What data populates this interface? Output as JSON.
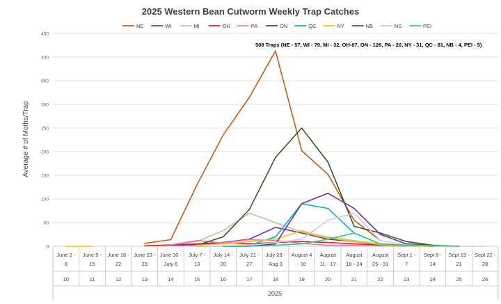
{
  "chart_data": {
    "type": "line",
    "title": "2025 Western Bean Cutworm Weekly Trap Catches",
    "ylabel": "Average # of Moths/Trap",
    "xlabel": "2025",
    "annotation": "508 Traps (NE - 57, WI - 79, MI - 32, OH-67, ON - 126, PA - 20, NY - 31, QC - 81, NB - 4, PEI - 5)",
    "ylim": [
      0,
      450
    ],
    "yticks": [
      0,
      50,
      100,
      150,
      200,
      250,
      300,
      350,
      400,
      450
    ],
    "grid": true,
    "legend_position": "top",
    "categories": [
      [
        "June 2 -",
        "8"
      ],
      [
        "June 9 -",
        "15"
      ],
      [
        "June 16 -",
        "22"
      ],
      [
        "June 23 -",
        "29"
      ],
      [
        "June 30 -",
        "July 6"
      ],
      [
        "July 7 -",
        "13"
      ],
      [
        "July 14 -",
        "20"
      ],
      [
        "July 21 -",
        "27"
      ],
      [
        "July 28 -",
        "Aug 3"
      ],
      [
        "August 4",
        "- 10"
      ],
      [
        "August",
        "11 - 17"
      ],
      [
        "August",
        "18 - 24"
      ],
      [
        "August",
        "25 - 31"
      ],
      [
        "Sept 1 -",
        "7"
      ],
      [
        "Sept 8 -",
        "14"
      ],
      [
        "Sept 15 -",
        "21"
      ],
      [
        "Sept 22 -",
        "28"
      ]
    ],
    "weeks": [
      "10",
      "11",
      "12",
      "13",
      "14",
      "15",
      "16",
      "17",
      "18",
      "19",
      "20",
      "21",
      "22",
      "23",
      "24",
      "25",
      "26"
    ],
    "series": [
      {
        "name": "NE",
        "color": "#C55A11",
        "values": [
          null,
          null,
          null,
          6,
          14,
          130,
          235,
          315,
          413,
          202,
          152,
          55,
          12,
          null,
          null,
          null,
          null
        ]
      },
      {
        "name": "WI",
        "color": "#7030A0",
        "values": [
          null,
          null,
          null,
          null,
          2,
          3,
          8,
          15,
          40,
          28,
          15,
          10,
          3,
          1,
          0,
          null,
          null
        ]
      },
      {
        "name": "MI",
        "color": "#A9D18E",
        "values": [
          null,
          null,
          null,
          null,
          3,
          10,
          33,
          70,
          50,
          30,
          20,
          12,
          5,
          2,
          1,
          null,
          null
        ]
      },
      {
        "name": "OH",
        "color": "#E0201B",
        "values": [
          null,
          null,
          null,
          1,
          3,
          5,
          8,
          5,
          8,
          10,
          8,
          5,
          3,
          1,
          0,
          null,
          null
        ]
      },
      {
        "name": "PA",
        "color": "#E377C2",
        "values": [
          null,
          null,
          null,
          null,
          3,
          12,
          7,
          14,
          12,
          6,
          2,
          2,
          1,
          0,
          null,
          null,
          null
        ]
      },
      {
        "name": "ON",
        "color": "#375623",
        "values": [
          null,
          null,
          null,
          null,
          null,
          2,
          20,
          78,
          188,
          250,
          178,
          42,
          28,
          10,
          2,
          0,
          null
        ]
      },
      {
        "name": "QC",
        "color": "#00B0F0",
        "values": [
          null,
          null,
          null,
          null,
          null,
          0,
          0,
          2,
          20,
          90,
          80,
          28,
          5,
          2,
          0,
          null,
          null
        ]
      },
      {
        "name": "NY",
        "color": "#FFC000",
        "values": [
          0,
          0,
          null,
          null,
          null,
          2,
          5,
          10,
          15,
          33,
          18,
          10,
          4,
          1,
          0,
          null,
          null
        ]
      },
      {
        "name": "NB",
        "color": "#7030A0",
        "values": [
          null,
          null,
          null,
          null,
          null,
          null,
          0,
          0,
          5,
          90,
          112,
          80,
          25,
          5,
          2,
          null,
          null
        ]
      },
      {
        "name": "NS",
        "color": "#C9C9F0",
        "values": [
          null,
          null,
          null,
          null,
          null,
          0,
          0,
          2,
          8,
          15,
          55,
          70,
          12,
          3,
          1,
          0,
          0
        ]
      },
      {
        "name": "PEI",
        "color": "#2ECC71",
        "values": [
          null,
          null,
          null,
          null,
          null,
          null,
          0,
          0,
          2,
          5,
          15,
          28,
          5,
          2,
          1,
          0,
          null
        ]
      }
    ]
  }
}
